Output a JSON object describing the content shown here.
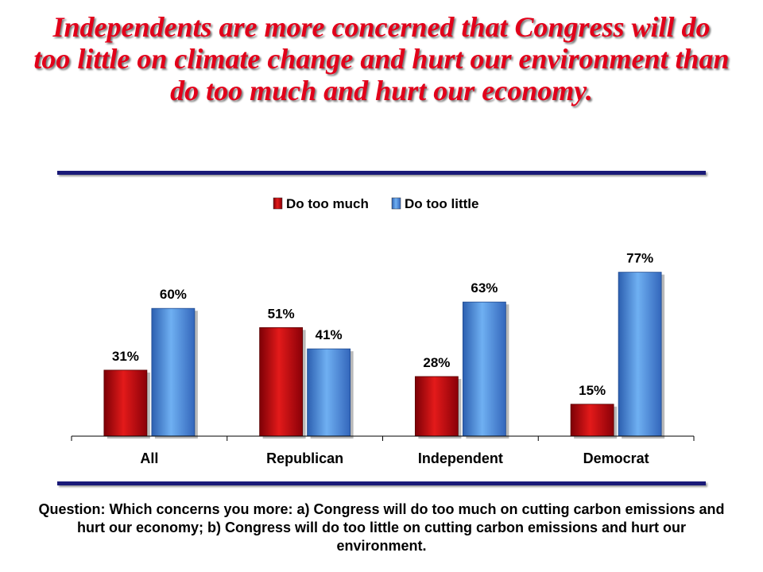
{
  "title": "Independents are more concerned that Congress will do too little on climate change and hurt our environment than do too much and hurt our economy.",
  "question": "Question: Which concerns you more: a) Congress will do too much on cutting carbon emissions and hurt our economy; b) Congress will do too little on cutting carbon emissions and hurt our environment.",
  "colors": {
    "title": "#e2001a",
    "rule": "#1a1a78",
    "series_too_much": "#c4080f",
    "series_too_little": "#4a8fdf"
  },
  "chart_data": {
    "type": "bar",
    "categories": [
      "All",
      "Republican",
      "Independent",
      "Democrat"
    ],
    "series": [
      {
        "name": "Do too much",
        "values": [
          31,
          51,
          28,
          15
        ],
        "labels": [
          "31%",
          "51%",
          "28%",
          "15%"
        ]
      },
      {
        "name": "Do too little",
        "values": [
          60,
          41,
          63,
          77
        ],
        "labels": [
          "60%",
          "41%",
          "63%",
          "77%"
        ]
      }
    ],
    "legend_position": "top-center",
    "ylim": [
      0,
      80
    ],
    "grid": false,
    "value_unit": "%"
  }
}
